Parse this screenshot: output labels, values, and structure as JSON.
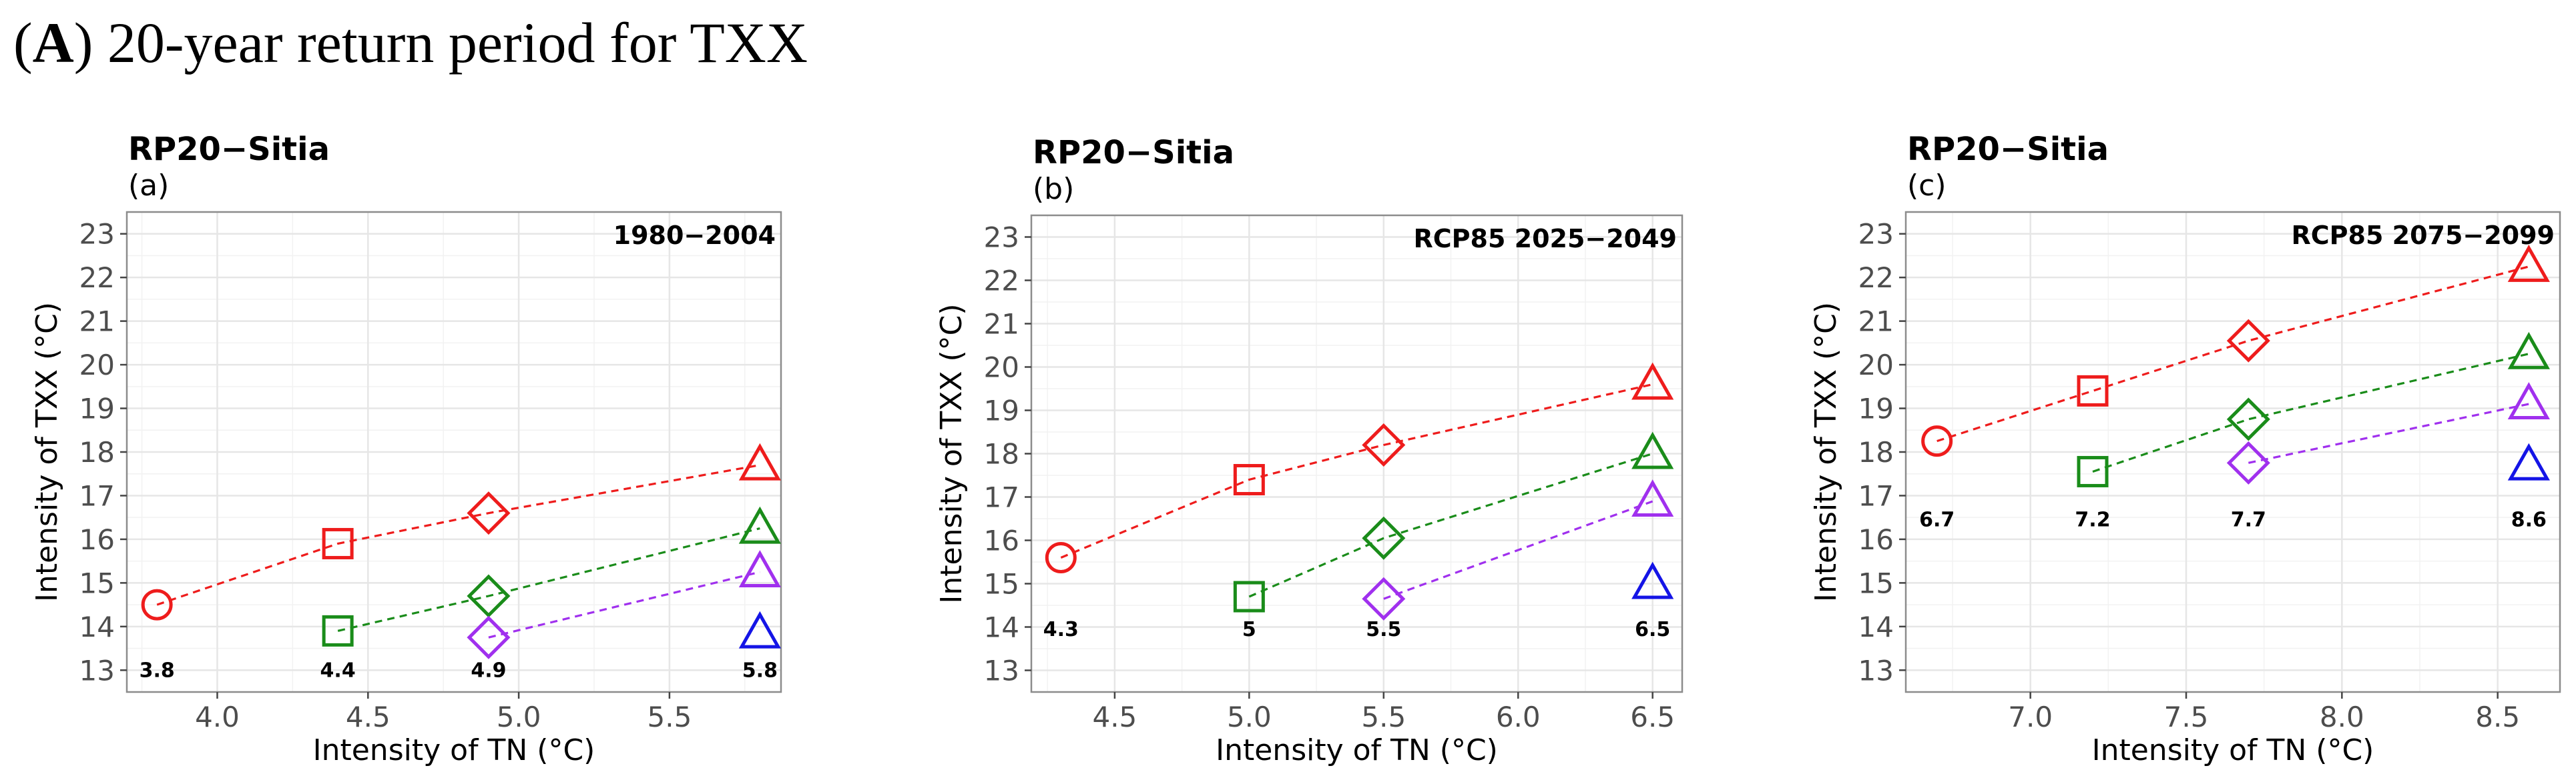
{
  "figure": {
    "label": "(A)",
    "label_letter": "A",
    "title": "20-year return period for TXX"
  },
  "colors": {
    "red": "#ee1c1c",
    "green": "#1a8c1a",
    "purple": "#a030ee",
    "blue": "#1414e6"
  },
  "chart_data": [
    {
      "type": "scatter",
      "title": "RP20−Sitia",
      "subtitle": "(a)",
      "annotation": "1980−2004",
      "xlabel": "Intensity of TN (°C)",
      "ylabel": "Intensity of TXX (°C)",
      "xlim": [
        3.7,
        5.87
      ],
      "ylim": [
        12.5,
        23.5
      ],
      "xticks": [
        4.0,
        4.5,
        5.0,
        5.5
      ],
      "xtick_labels": [
        "4.0",
        "4.5",
        "5.0",
        "5.5"
      ],
      "yticks": [
        13,
        14,
        15,
        16,
        17,
        18,
        19,
        20,
        21,
        22,
        23
      ],
      "ytick_labels": [
        "13",
        "14",
        "15",
        "16",
        "17",
        "18",
        "19",
        "20",
        "21",
        "22",
        "23"
      ],
      "point_labels": [
        {
          "x": 3.8,
          "text": "3.8"
        },
        {
          "x": 4.4,
          "text": "4.4"
        },
        {
          "x": 4.9,
          "text": "4.9"
        },
        {
          "x": 5.8,
          "text": "5.8"
        }
      ],
      "point_label_y": 13.0,
      "series": [
        {
          "color": "red",
          "points": [
            {
              "x": 3.8,
              "y": 14.5,
              "shape": "circle"
            },
            {
              "x": 4.4,
              "y": 15.9,
              "shape": "square"
            },
            {
              "x": 4.9,
              "y": 16.6,
              "shape": "diamond"
            },
            {
              "x": 5.8,
              "y": 17.7,
              "shape": "triangle"
            }
          ]
        },
        {
          "color": "green",
          "points": [
            {
              "x": 4.4,
              "y": 13.9,
              "shape": "square"
            },
            {
              "x": 4.9,
              "y": 14.7,
              "shape": "diamond"
            },
            {
              "x": 5.8,
              "y": 16.25,
              "shape": "triangle"
            }
          ]
        },
        {
          "color": "purple",
          "points": [
            {
              "x": 4.9,
              "y": 13.75,
              "shape": "diamond"
            },
            {
              "x": 5.8,
              "y": 15.25,
              "shape": "triangle"
            }
          ]
        },
        {
          "color": "blue",
          "points": [
            {
              "x": 5.8,
              "y": 13.85,
              "shape": "triangle"
            }
          ]
        }
      ]
    },
    {
      "type": "scatter",
      "title": "RP20−Sitia",
      "subtitle": "(b)",
      "annotation": "RCP85 2025−2049",
      "xlabel": "Intensity of TN (°C)",
      "ylabel": "Intensity of TXX (°C)",
      "xlim": [
        4.19,
        6.61
      ],
      "ylim": [
        12.5,
        23.5
      ],
      "xticks": [
        4.5,
        5.0,
        5.5,
        6.0,
        6.5
      ],
      "xtick_labels": [
        "4.5",
        "5.0",
        "5.5",
        "6.0",
        "6.5"
      ],
      "yticks": [
        13,
        14,
        15,
        16,
        17,
        18,
        19,
        20,
        21,
        22,
        23
      ],
      "ytick_labels": [
        "13",
        "14",
        "15",
        "16",
        "17",
        "18",
        "19",
        "20",
        "21",
        "22",
        "23"
      ],
      "point_labels": [
        {
          "x": 4.3,
          "text": "4.3"
        },
        {
          "x": 5.0,
          "text": "5"
        },
        {
          "x": 5.5,
          "text": "5.5"
        },
        {
          "x": 6.5,
          "text": "6.5"
        }
      ],
      "point_label_y": 13.95,
      "series": [
        {
          "color": "red",
          "points": [
            {
              "x": 4.3,
              "y": 15.6,
              "shape": "circle"
            },
            {
              "x": 5.0,
              "y": 17.4,
              "shape": "square"
            },
            {
              "x": 5.5,
              "y": 18.2,
              "shape": "diamond"
            },
            {
              "x": 6.5,
              "y": 19.6,
              "shape": "triangle"
            }
          ]
        },
        {
          "color": "green",
          "points": [
            {
              "x": 5.0,
              "y": 14.7,
              "shape": "square"
            },
            {
              "x": 5.5,
              "y": 16.05,
              "shape": "diamond"
            },
            {
              "x": 6.5,
              "y": 18.0,
              "shape": "triangle"
            }
          ]
        },
        {
          "color": "purple",
          "points": [
            {
              "x": 5.5,
              "y": 14.65,
              "shape": "diamond"
            },
            {
              "x": 6.5,
              "y": 16.9,
              "shape": "triangle"
            }
          ]
        },
        {
          "color": "blue",
          "points": [
            {
              "x": 6.5,
              "y": 15.0,
              "shape": "triangle"
            }
          ]
        }
      ]
    },
    {
      "type": "scatter",
      "title": "RP20−Sitia",
      "subtitle": "(c)",
      "annotation": "RCP85 2075−2099",
      "xlabel": "Intensity of TN (°C)",
      "ylabel": "Intensity of TXX (°C)",
      "xlim": [
        6.6,
        8.7
      ],
      "ylim": [
        12.5,
        23.5
      ],
      "xticks": [
        7.0,
        7.5,
        8.0,
        8.5
      ],
      "xtick_labels": [
        "7.0",
        "7.5",
        "8.0",
        "8.5"
      ],
      "yticks": [
        13,
        14,
        15,
        16,
        17,
        18,
        19,
        20,
        21,
        22,
        23
      ],
      "ytick_labels": [
        "13",
        "14",
        "15",
        "16",
        "17",
        "18",
        "19",
        "20",
        "21",
        "22",
        "23"
      ],
      "point_labels": [
        {
          "x": 6.7,
          "text": "6.7"
        },
        {
          "x": 7.2,
          "text": "7.2"
        },
        {
          "x": 7.7,
          "text": "7.7"
        },
        {
          "x": 8.6,
          "text": "8.6"
        }
      ],
      "point_label_y": 16.45,
      "series": [
        {
          "color": "red",
          "points": [
            {
              "x": 6.7,
              "y": 18.25,
              "shape": "circle"
            },
            {
              "x": 7.2,
              "y": 19.4,
              "shape": "square"
            },
            {
              "x": 7.7,
              "y": 20.55,
              "shape": "diamond"
            },
            {
              "x": 8.6,
              "y": 22.25,
              "shape": "triangle"
            }
          ]
        },
        {
          "color": "green",
          "points": [
            {
              "x": 7.2,
              "y": 17.55,
              "shape": "square"
            },
            {
              "x": 7.7,
              "y": 18.75,
              "shape": "diamond"
            },
            {
              "x": 8.6,
              "y": 20.25,
              "shape": "triangle"
            }
          ]
        },
        {
          "color": "purple",
          "points": [
            {
              "x": 7.7,
              "y": 17.75,
              "shape": "diamond"
            },
            {
              "x": 8.6,
              "y": 19.1,
              "shape": "triangle"
            }
          ]
        },
        {
          "color": "blue",
          "points": [
            {
              "x": 8.6,
              "y": 17.7,
              "shape": "triangle"
            }
          ]
        }
      ]
    }
  ]
}
